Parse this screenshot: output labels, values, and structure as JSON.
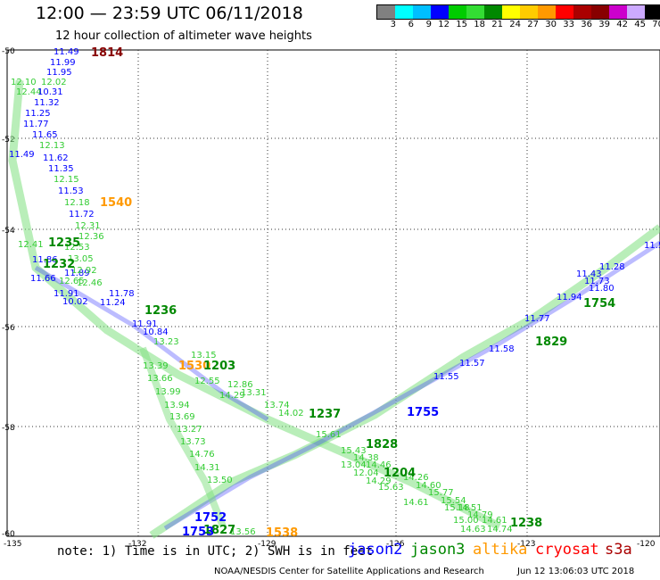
{
  "header": {
    "title": "12:00 — 23:59 UTC 06/11/2018",
    "subtitle": "12 hour collection of altimeter wave heights"
  },
  "scale": {
    "colors": [
      "#808080",
      "#00ffff",
      "#00bfff",
      "#0000ff",
      "#00cc00",
      "#33dd33",
      "#008800",
      "#ffff00",
      "#ffcc00",
      "#ff9900",
      "#ff0000",
      "#aa0000",
      "#880000",
      "#cc00cc",
      "#ccaaff",
      "#000000"
    ],
    "labels": [
      "3",
      "6",
      "9",
      "12",
      "15",
      "18",
      "21",
      "24",
      "27",
      "30",
      "33",
      "36",
      "39",
      "42",
      "45",
      "70"
    ],
    "unit": "(ft)"
  },
  "axes": {
    "x_labels": [
      "-135",
      "-132",
      "-129",
      "-126",
      "-123",
      "-120"
    ],
    "y_labels": [
      "-50",
      "-52",
      "-54",
      "-56",
      "-58",
      "-60"
    ]
  },
  "map_labels": {
    "t1814": "1814",
    "t1540": "1540",
    "t1235": "1235",
    "t1232": "1232",
    "t1236": "1236",
    "t1530": "1530",
    "t1203": "1203",
    "t1237": "1237",
    "t1828": "1828",
    "t1204": "1204",
    "t1755": "1755",
    "t1829": "1829",
    "t1754": "1754",
    "t1238": "1238",
    "t1538": "1538",
    "t1752": "1752",
    "t1827": "1827",
    "t1753": "1753"
  },
  "values": {
    "a1": "11.49",
    "a2": "11.99",
    "a3": "11.95",
    "a4": "12.02",
    "a5": "12.10",
    "a6": "12.44",
    "a7": "10.31",
    "a8": "11.32",
    "a9": "11.25",
    "a10": "11.77",
    "a11": "11.65",
    "a12": "12.13",
    "a13": "11.49",
    "a14": "11.62",
    "a15": "11.35",
    "a16": "12.15",
    "a17": "11.53",
    "a18": "12.18",
    "a19": "11.72",
    "a20": "12.31",
    "a21": "12.41",
    "a22": "12.36",
    "a23": "12.53",
    "a24": "13.05",
    "a25": "11.86",
    "a26": "11.89",
    "a27": "12.92",
    "a28": "11.66",
    "a29": "12.46",
    "a30": "11.91",
    "a31": "11.78",
    "a32": "10.02",
    "a33": "11.24",
    "a34": "10.84",
    "a35": "11.91",
    "a36": "13.23",
    "a37": "13.15",
    "a38": "13.39",
    "a39": "13.66",
    "a40": "13.99",
    "a41": "13.94",
    "a42": "13.69",
    "a43": "13.27",
    "a44": "13.73",
    "a45": "14.76",
    "a46": "14.31",
    "a47": "13.50",
    "a48": "12.55",
    "a49": "12.86",
    "a50": "14.29",
    "a51": "13.31",
    "a52": "13.74",
    "a53": "14.02",
    "a54": "15.61",
    "a55": "15.43",
    "a56": "14.38",
    "a57": "13.04",
    "a58": "14.46",
    "a59": "12.04",
    "a60": "14.29",
    "a61": "15.63",
    "a62": "14.26",
    "a63": "15.77",
    "a64": "14.60",
    "a65": "15.54",
    "a66": "14.61",
    "a67": "15.18",
    "a68": "14.51",
    "a69": "14.79",
    "a70": "15.00",
    "a71": "14.61",
    "a72": "14.63",
    "a73": "14.74",
    "a74": "13.56",
    "a75": "11.77",
    "a76": "11.58",
    "a77": "11.57",
    "a78": "11.55",
    "a79": "11.94",
    "a80": "11.73",
    "a81": "11.43",
    "a82": "11.28",
    "a83": "11.5",
    "a84": "12.65",
    "a85": "11.80"
  },
  "footer": {
    "note": "note: 1) Time is in UTC; 2) SWH is in feet",
    "sat_jason2": "jason2",
    "sat_jason3": "jason3",
    "sat_altika": "altika",
    "sat_cryosat": "cryosat",
    "sat_s3a": "s3a",
    "sat_colors": {
      "jason2": "#0000ff",
      "jason3": "#008800",
      "altika": "#ff9900",
      "cryosat": "#ff0000",
      "s3a": "#aa0000"
    },
    "credit": "NOAA/NESDIS Center for Satellite Applications and Research",
    "timestamp": "Jun 12 13:06:03 UTC 2018"
  }
}
